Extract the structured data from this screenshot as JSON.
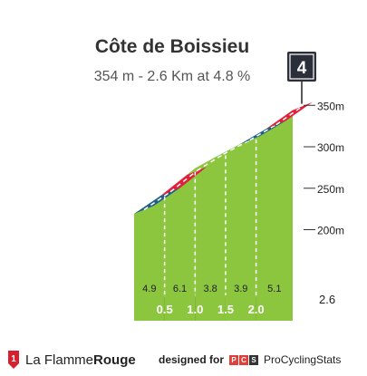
{
  "chart_data": {
    "type": "area",
    "title": "Côte de Boissieu",
    "subtitle": "354 m - 2.6 Km at 4.8 %",
    "category_badge": "4",
    "x_km": [
      0,
      0.5,
      1.0,
      1.5,
      2.0,
      2.6
    ],
    "km_labels": [
      "0.5",
      "1.0",
      "1.5",
      "2.0"
    ],
    "end_km_label": "2.6",
    "segment_gradients": [
      4.9,
      6.1,
      3.8,
      3.9,
      5.1
    ],
    "segment_gradient_labels": [
      "4.9",
      "6.1",
      "3.8",
      "3.9",
      "5.1"
    ],
    "altitude_m": [
      229,
      254,
      284,
      304,
      323,
      354
    ],
    "altitude_ticks": [
      200,
      250,
      300,
      350
    ],
    "altitude_tick_labels": [
      "200m",
      "250m",
      "300m",
      "350m"
    ],
    "ylim": [
      100,
      360
    ],
    "segment_colors": [
      "#8cc63f",
      "#8cc63f",
      "#8cc63f",
      "#8cc63f",
      "#8cc63f"
    ],
    "top_stripe_colors": [
      "#1f5f8b",
      "#e31e3c",
      "#8cc63f",
      "#8cc63f",
      "#1f5f8b",
      "#e31e3c"
    ],
    "side_color": "#a99f92",
    "base_color": "#333333"
  },
  "footer": {
    "brand_left_regular": "La Flamme",
    "brand_left_bold": "Rouge",
    "designed_for": "designed for",
    "pcs_letters": [
      "P",
      "C",
      "S"
    ],
    "pcs_brand": "ProCyclingStats"
  },
  "colors": {
    "brand_red": "#d6202e",
    "pcs_red": "#e0403a",
    "pcs_dark": "#333333"
  }
}
